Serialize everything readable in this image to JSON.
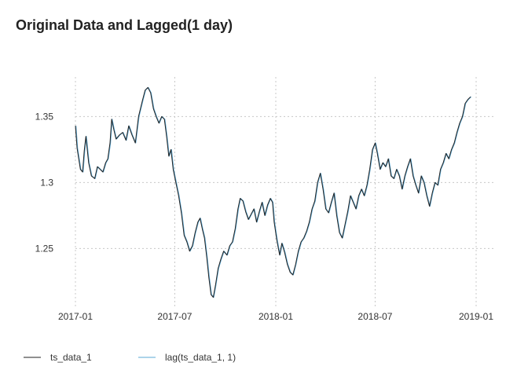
{
  "chart_data": {
    "type": "line",
    "title": "Original Data and Lagged(1 day)",
    "xlabel": "",
    "ylabel": "",
    "x_ticks": [
      "2017-01",
      "2017-07",
      "2018-01",
      "2018-07",
      "2019-01"
    ],
    "y_ticks": [
      "1.25",
      "1.3",
      "1.35"
    ],
    "xlim": [
      "2017-01-01",
      "2019-01-01"
    ],
    "ylim": [
      1.205,
      1.38
    ],
    "grid": true,
    "legend_position": "bottom-left",
    "series": [
      {
        "name": "ts_data_1",
        "color": "#222222",
        "points": [
          [
            "2017-01-01",
            1.343
          ],
          [
            "2017-01-04",
            1.326
          ],
          [
            "2017-01-07",
            1.318
          ],
          [
            "2017-01-10",
            1.31
          ],
          [
            "2017-01-14",
            1.308
          ],
          [
            "2017-01-17",
            1.324
          ],
          [
            "2017-01-20",
            1.335
          ],
          [
            "2017-01-25",
            1.315
          ],
          [
            "2017-01-30",
            1.305
          ],
          [
            "2017-02-05",
            1.303
          ],
          [
            "2017-02-10",
            1.312
          ],
          [
            "2017-02-15",
            1.31
          ],
          [
            "2017-02-20",
            1.308
          ],
          [
            "2017-02-25",
            1.315
          ],
          [
            "2017-03-01",
            1.318
          ],
          [
            "2017-03-05",
            1.33
          ],
          [
            "2017-03-08",
            1.348
          ],
          [
            "2017-03-12",
            1.34
          ],
          [
            "2017-03-16",
            1.333
          ],
          [
            "2017-03-22",
            1.336
          ],
          [
            "2017-03-28",
            1.338
          ],
          [
            "2017-04-03",
            1.332
          ],
          [
            "2017-04-08",
            1.343
          ],
          [
            "2017-04-14",
            1.336
          ],
          [
            "2017-04-20",
            1.33
          ],
          [
            "2017-04-26",
            1.35
          ],
          [
            "2017-05-03",
            1.362
          ],
          [
            "2017-05-08",
            1.37
          ],
          [
            "2017-05-13",
            1.372
          ],
          [
            "2017-05-18",
            1.368
          ],
          [
            "2017-05-23",
            1.356
          ],
          [
            "2017-05-28",
            1.35
          ],
          [
            "2017-06-02",
            1.345
          ],
          [
            "2017-06-07",
            1.35
          ],
          [
            "2017-06-12",
            1.348
          ],
          [
            "2017-06-16",
            1.335
          ],
          [
            "2017-06-20",
            1.32
          ],
          [
            "2017-06-24",
            1.325
          ],
          [
            "2017-06-28",
            1.31
          ],
          [
            "2017-07-03",
            1.3
          ],
          [
            "2017-07-08",
            1.29
          ],
          [
            "2017-07-13",
            1.277
          ],
          [
            "2017-07-18",
            1.26
          ],
          [
            "2017-07-23",
            1.255
          ],
          [
            "2017-07-28",
            1.248
          ],
          [
            "2017-08-02",
            1.252
          ],
          [
            "2017-08-07",
            1.262
          ],
          [
            "2017-08-12",
            1.27
          ],
          [
            "2017-08-16",
            1.273
          ],
          [
            "2017-08-20",
            1.265
          ],
          [
            "2017-08-24",
            1.258
          ],
          [
            "2017-08-28",
            1.244
          ],
          [
            "2017-09-01",
            1.228
          ],
          [
            "2017-09-05",
            1.215
          ],
          [
            "2017-09-09",
            1.213
          ],
          [
            "2017-09-13",
            1.222
          ],
          [
            "2017-09-18",
            1.235
          ],
          [
            "2017-09-23",
            1.242
          ],
          [
            "2017-09-28",
            1.248
          ],
          [
            "2017-10-04",
            1.245
          ],
          [
            "2017-10-09",
            1.252
          ],
          [
            "2017-10-14",
            1.255
          ],
          [
            "2017-10-19",
            1.265
          ],
          [
            "2017-10-24",
            1.28
          ],
          [
            "2017-10-28",
            1.288
          ],
          [
            "2017-11-02",
            1.286
          ],
          [
            "2017-11-07",
            1.278
          ],
          [
            "2017-11-12",
            1.272
          ],
          [
            "2017-11-17",
            1.276
          ],
          [
            "2017-11-22",
            1.28
          ],
          [
            "2017-11-27",
            1.27
          ],
          [
            "2017-12-02",
            1.278
          ],
          [
            "2017-12-07",
            1.285
          ],
          [
            "2017-12-12",
            1.275
          ],
          [
            "2017-12-17",
            1.283
          ],
          [
            "2017-12-22",
            1.288
          ],
          [
            "2017-12-26",
            1.285
          ],
          [
            "2017-12-29",
            1.27
          ],
          [
            "2018-01-03",
            1.256
          ],
          [
            "2018-01-08",
            1.245
          ],
          [
            "2018-01-12",
            1.254
          ],
          [
            "2018-01-17",
            1.247
          ],
          [
            "2018-01-22",
            1.238
          ],
          [
            "2018-01-27",
            1.232
          ],
          [
            "2018-02-01",
            1.23
          ],
          [
            "2018-02-06",
            1.238
          ],
          [
            "2018-02-11",
            1.248
          ],
          [
            "2018-02-16",
            1.255
          ],
          [
            "2018-02-21",
            1.258
          ],
          [
            "2018-02-26",
            1.263
          ],
          [
            "2018-03-03",
            1.27
          ],
          [
            "2018-03-08",
            1.28
          ],
          [
            "2018-03-13",
            1.286
          ],
          [
            "2018-03-18",
            1.3
          ],
          [
            "2018-03-23",
            1.307
          ],
          [
            "2018-03-28",
            1.295
          ],
          [
            "2018-04-02",
            1.28
          ],
          [
            "2018-04-07",
            1.277
          ],
          [
            "2018-04-12",
            1.285
          ],
          [
            "2018-04-17",
            1.292
          ],
          [
            "2018-04-22",
            1.275
          ],
          [
            "2018-04-27",
            1.262
          ],
          [
            "2018-05-02",
            1.258
          ],
          [
            "2018-05-07",
            1.268
          ],
          [
            "2018-05-12",
            1.278
          ],
          [
            "2018-05-17",
            1.29
          ],
          [
            "2018-05-22",
            1.285
          ],
          [
            "2018-05-27",
            1.28
          ],
          [
            "2018-06-01",
            1.29
          ],
          [
            "2018-06-06",
            1.295
          ],
          [
            "2018-06-11",
            1.29
          ],
          [
            "2018-06-16",
            1.298
          ],
          [
            "2018-06-21",
            1.31
          ],
          [
            "2018-06-26",
            1.325
          ],
          [
            "2018-07-01",
            1.33
          ],
          [
            "2018-07-05",
            1.322
          ],
          [
            "2018-07-10",
            1.31
          ],
          [
            "2018-07-15",
            1.315
          ],
          [
            "2018-07-20",
            1.312
          ],
          [
            "2018-07-25",
            1.318
          ],
          [
            "2018-07-30",
            1.305
          ],
          [
            "2018-08-04",
            1.303
          ],
          [
            "2018-08-09",
            1.31
          ],
          [
            "2018-08-14",
            1.305
          ],
          [
            "2018-08-19",
            1.295
          ],
          [
            "2018-08-24",
            1.305
          ],
          [
            "2018-08-29",
            1.312
          ],
          [
            "2018-09-03",
            1.318
          ],
          [
            "2018-09-08",
            1.305
          ],
          [
            "2018-09-13",
            1.298
          ],
          [
            "2018-09-18",
            1.292
          ],
          [
            "2018-09-23",
            1.305
          ],
          [
            "2018-09-28",
            1.3
          ],
          [
            "2018-10-03",
            1.29
          ],
          [
            "2018-10-08",
            1.282
          ],
          [
            "2018-10-13",
            1.292
          ],
          [
            "2018-10-18",
            1.3
          ],
          [
            "2018-10-23",
            1.298
          ],
          [
            "2018-10-28",
            1.31
          ],
          [
            "2018-11-02",
            1.315
          ],
          [
            "2018-11-07",
            1.322
          ],
          [
            "2018-11-12",
            1.318
          ],
          [
            "2018-11-17",
            1.325
          ],
          [
            "2018-11-22",
            1.33
          ],
          [
            "2018-11-27",
            1.338
          ],
          [
            "2018-12-02",
            1.345
          ],
          [
            "2018-12-07",
            1.35
          ],
          [
            "2018-12-12",
            1.36
          ],
          [
            "2018-12-17",
            1.363
          ],
          [
            "2018-12-22",
            1.365
          ]
        ]
      },
      {
        "name": "lag(ts_data_1, 1)",
        "color": "#5aa9d6",
        "lag_days": 1
      }
    ]
  }
}
